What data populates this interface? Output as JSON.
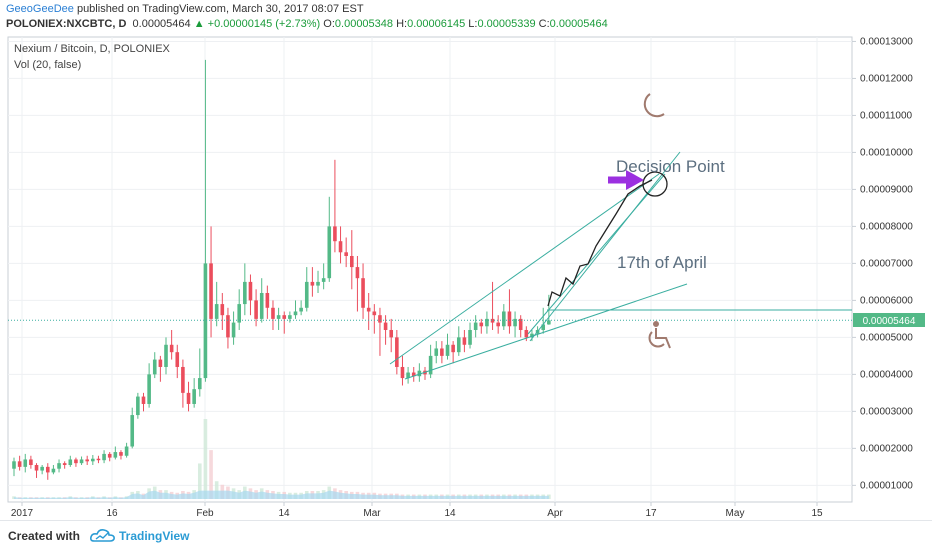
{
  "header": {
    "author": "GeeoGeeDee",
    "published": " published on TradingView.com, March 30, 2017 08:07 EST",
    "symbol_line": "POLONIEX:NXCBTC, D",
    "last": "0.00005464",
    "change": "+0.00000145 (+2.73%)",
    "o_label": "O:",
    "o": "0.00005348",
    "h_label": "H:",
    "h": "0.00006145",
    "l_label": "L:",
    "l": "0.00005339",
    "c_label": "C:",
    "c": "0.00005464"
  },
  "legend": {
    "title": "Nexium / Bitcoin, D, POLONIEX",
    "vol": "Vol (20, false)"
  },
  "annotations": {
    "decision": "Decision Point",
    "date_note": "17th of April",
    "moon_icon": "moon-icon",
    "wheelchair_icon": "wheelchair-icon"
  },
  "footer": {
    "created_with": "Created with",
    "brand": "TradingView"
  },
  "colors": {
    "up": "#53b987",
    "down": "#eb4d5c",
    "trend": "#3aaea0",
    "arrow": "#9b30e0",
    "volume": "#a8d8f0",
    "price_line": "#3aaea0"
  },
  "chart_data": {
    "type": "candlestick",
    "x_ticks": [
      "2017",
      "16",
      "Feb",
      "14",
      "Mar",
      "14",
      "Apr",
      "17",
      "May",
      "15"
    ],
    "y_ticks": [
      "0.00001000",
      "0.00002000",
      "0.00003000",
      "0.00004000",
      "0.00005000",
      "0.00006000",
      "0.00007000",
      "0.00008000",
      "0.00009000",
      "0.00010000",
      "0.00011000",
      "0.00012000",
      "0.00013000"
    ],
    "ylim": [
      5.5e-06,
      0.0001312
    ],
    "last_price_label": "0.00005464",
    "last_price": 5.464e-05,
    "candles": [
      [
        1.45,
        1.65,
        1.75,
        1.25
      ],
      [
        1.65,
        1.5,
        1.8,
        1.4
      ],
      [
        1.5,
        1.7,
        1.85,
        1.35
      ],
      [
        1.7,
        1.55,
        1.8,
        1.45
      ],
      [
        1.55,
        1.4,
        1.6,
        1.2
      ],
      [
        1.4,
        1.5,
        1.55,
        1.3
      ],
      [
        1.5,
        1.35,
        1.6,
        1.15
      ],
      [
        1.35,
        1.45,
        1.55,
        1.3
      ],
      [
        1.45,
        1.6,
        1.7,
        1.35
      ],
      [
        1.6,
        1.55,
        1.65,
        1.45
      ],
      [
        1.55,
        1.7,
        1.8,
        1.5
      ],
      [
        1.7,
        1.6,
        1.75,
        1.5
      ],
      [
        1.6,
        1.7,
        1.78,
        1.55
      ],
      [
        1.7,
        1.65,
        1.8,
        1.55
      ],
      [
        1.65,
        1.72,
        1.82,
        1.55
      ],
      [
        1.72,
        1.68,
        1.8,
        1.6
      ],
      [
        1.68,
        1.85,
        1.95,
        1.6
      ],
      [
        1.85,
        1.75,
        1.9,
        1.65
      ],
      [
        1.75,
        1.9,
        2.05,
        1.7
      ],
      [
        1.9,
        1.8,
        1.95,
        1.7
      ],
      [
        1.8,
        2.05,
        2.15,
        1.75
      ],
      [
        2.05,
        2.9,
        3.1,
        2.0
      ],
      [
        2.9,
        3.4,
        3.5,
        2.8
      ],
      [
        3.4,
        3.2,
        3.5,
        3.0
      ],
      [
        3.2,
        4.0,
        4.3,
        3.1
      ],
      [
        4.0,
        4.4,
        4.6,
        3.9
      ],
      [
        4.4,
        4.2,
        4.5,
        3.8
      ],
      [
        4.2,
        4.8,
        5.0,
        4.0
      ],
      [
        4.8,
        4.6,
        5.2,
        4.4
      ],
      [
        4.6,
        4.2,
        4.8,
        3.9
      ],
      [
        4.2,
        3.5,
        4.4,
        3.1
      ],
      [
        3.5,
        3.2,
        3.8,
        3.0
      ],
      [
        3.2,
        3.6,
        3.9,
        3.1
      ],
      [
        3.6,
        3.9,
        4.7,
        3.4
      ],
      [
        3.9,
        7.0,
        12.5,
        3.8
      ],
      [
        7.0,
        5.5,
        8.0,
        5.0
      ],
      [
        5.5,
        5.9,
        6.5,
        5.3
      ],
      [
        5.9,
        5.6,
        6.2,
        5.2
      ],
      [
        5.6,
        5.0,
        5.8,
        4.7
      ],
      [
        5.0,
        5.4,
        5.7,
        4.8
      ],
      [
        5.4,
        5.9,
        6.3,
        5.2
      ],
      [
        5.9,
        6.5,
        7.0,
        5.6
      ],
      [
        6.5,
        6.0,
        6.7,
        5.6
      ],
      [
        6.0,
        5.5,
        6.3,
        5.3
      ],
      [
        5.5,
        6.2,
        6.6,
        5.4
      ],
      [
        6.2,
        5.8,
        6.4,
        5.5
      ],
      [
        5.8,
        5.5,
        6.0,
        5.2
      ],
      [
        5.5,
        5.6,
        5.8,
        5.2
      ],
      [
        5.6,
        5.5,
        5.7,
        5.1
      ],
      [
        5.5,
        5.6,
        5.7,
        5.4
      ],
      [
        5.6,
        5.7,
        6.0,
        5.5
      ],
      [
        5.7,
        5.8,
        6.0,
        5.6
      ],
      [
        5.8,
        6.5,
        6.9,
        5.7
      ],
      [
        6.5,
        6.4,
        6.9,
        6.1
      ],
      [
        6.4,
        6.5,
        6.8,
        6.2
      ],
      [
        6.5,
        6.6,
        7.0,
        6.3
      ],
      [
        6.6,
        8.0,
        8.8,
        6.5
      ],
      [
        8.0,
        7.6,
        9.8,
        7.3
      ],
      [
        7.6,
        7.3,
        8.0,
        7.0
      ],
      [
        7.3,
        7.2,
        7.7,
        6.9
      ],
      [
        7.2,
        6.9,
        7.9,
        6.3
      ],
      [
        6.9,
        6.6,
        7.2,
        5.7
      ],
      [
        6.6,
        5.8,
        7.0,
        5.5
      ],
      [
        5.8,
        5.7,
        6.2,
        5.2
      ],
      [
        5.7,
        5.6,
        5.9,
        5.1
      ],
      [
        5.6,
        5.4,
        5.8,
        4.5
      ],
      [
        5.4,
        5.2,
        5.6,
        4.8
      ],
      [
        5.2,
        5.0,
        5.5,
        4.6
      ],
      [
        5.0,
        4.2,
        5.2,
        4.0
      ],
      [
        4.2,
        3.9,
        4.5,
        3.7
      ],
      [
        3.9,
        4.05,
        4.2,
        3.75
      ],
      [
        4.05,
        3.95,
        4.2,
        3.8
      ],
      [
        3.95,
        4.1,
        4.3,
        3.8
      ],
      [
        4.1,
        4.0,
        4.2,
        3.85
      ],
      [
        4.0,
        4.5,
        4.8,
        3.9
      ],
      [
        4.5,
        4.7,
        4.9,
        4.3
      ],
      [
        4.7,
        4.5,
        4.9,
        4.3
      ],
      [
        4.5,
        4.8,
        5.1,
        4.4
      ],
      [
        4.8,
        4.6,
        4.9,
        4.3
      ],
      [
        4.6,
        5.0,
        5.3,
        4.5
      ],
      [
        5.0,
        4.8,
        5.2,
        4.6
      ],
      [
        4.8,
        5.2,
        5.4,
        4.7
      ],
      [
        5.2,
        5.4,
        5.6,
        5.0
      ],
      [
        5.4,
        5.3,
        5.5,
        5.1
      ],
      [
        5.3,
        5.5,
        5.7,
        5.1
      ],
      [
        5.5,
        5.4,
        6.5,
        5.2
      ],
      [
        5.4,
        5.3,
        5.6,
        5.1
      ],
      [
        5.3,
        5.7,
        5.9,
        5.2
      ],
      [
        5.7,
        5.3,
        6.3,
        5.1
      ],
      [
        5.3,
        5.5,
        5.7,
        5.0
      ],
      [
        5.5,
        5.2,
        5.6,
        5.0
      ],
      [
        5.2,
        5.0,
        5.3,
        4.9
      ],
      [
        5.0,
        5.1,
        5.2,
        4.9
      ],
      [
        5.1,
        5.2,
        5.3,
        5.0
      ],
      [
        5.2,
        5.35,
        5.8,
        5.1
      ],
      [
        5.35,
        5.46,
        6.15,
        5.34
      ]
    ],
    "volumes": [
      3,
      2,
      2,
      2,
      2,
      2,
      2,
      2,
      2,
      2,
      3,
      2,
      2,
      2,
      3,
      2,
      3,
      2,
      3,
      2,
      3,
      8,
      9,
      6,
      12,
      14,
      10,
      10,
      8,
      7,
      9,
      8,
      10,
      40,
      90,
      55,
      20,
      16,
      14,
      12,
      10,
      14,
      12,
      10,
      12,
      10,
      9,
      8,
      8,
      7,
      7,
      7,
      9,
      9,
      9,
      10,
      14,
      12,
      10,
      9,
      8,
      8,
      7,
      7,
      7,
      6,
      6,
      6,
      6,
      5,
      5,
      5,
      5,
      5,
      5,
      5,
      5,
      5,
      5,
      5,
      5,
      5,
      5,
      5,
      5,
      5,
      5,
      5,
      5,
      5,
      5,
      5,
      5,
      5,
      5,
      5
    ],
    "volume_area_level": 0.7
  }
}
